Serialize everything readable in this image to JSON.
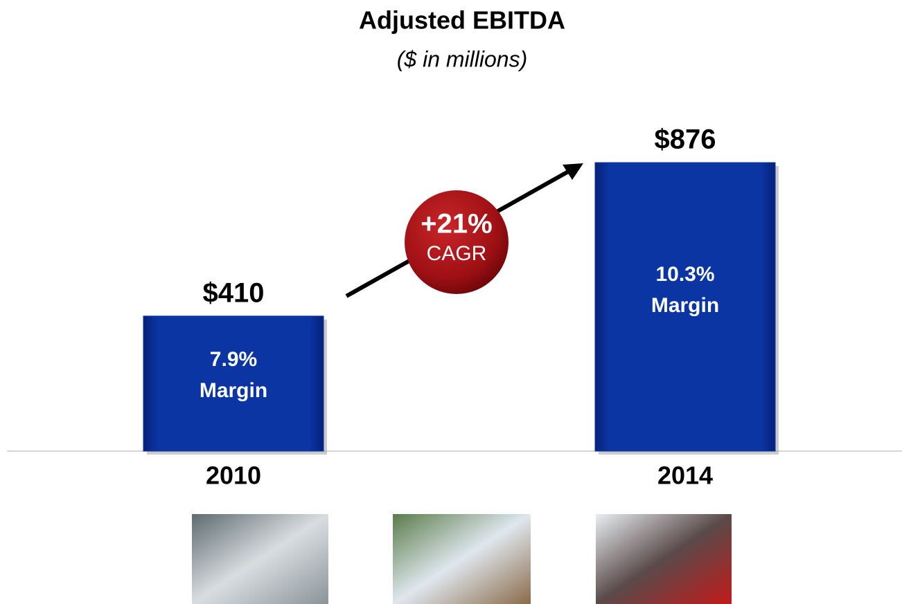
{
  "chart_data": {
    "type": "bar",
    "title": "Adjusted EBITDA",
    "subtitle": "($ in millions)",
    "categories": [
      "2010",
      "2014"
    ],
    "values": [
      410,
      876
    ],
    "value_labels": [
      "$410",
      "$876"
    ],
    "color": "#0b35a3",
    "inner_labels": [
      [
        "7.9%",
        "Margin"
      ],
      [
        "10.3%",
        "Margin"
      ]
    ],
    "cagr": {
      "value": "+21%",
      "label": "CAGR"
    }
  }
}
